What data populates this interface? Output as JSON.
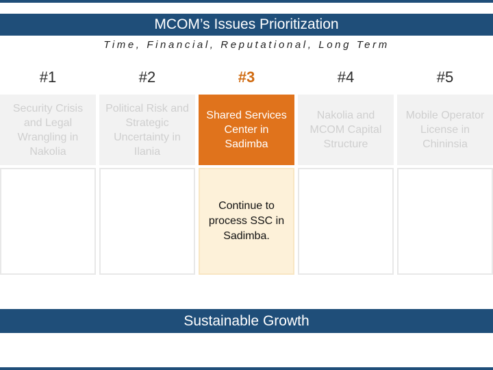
{
  "header": {
    "title": "MCOM’s Issues Prioritization",
    "subtitle": "Time, Financial, Reputational, Long Term"
  },
  "priorities": [
    {
      "rank": "#1",
      "topic": "Security Crisis and Legal Wrangling in Nakolia",
      "detail": ""
    },
    {
      "rank": "#2",
      "topic": "Political Risk and Strategic Uncertainty in Ilania",
      "detail": ""
    },
    {
      "rank": "#3",
      "topic": "Shared Services Center in Sadimba",
      "detail": "Continue to process SSC in Sadimba."
    },
    {
      "rank": "#4",
      "topic": "Nakolia and MCOM Capital Structure",
      "detail": ""
    },
    {
      "rank": "#5",
      "topic": "Mobile Operator License in Chininsia",
      "detail": ""
    }
  ],
  "footer": {
    "banner": "Sustainable Growth"
  },
  "colors": {
    "primary_blue": "#1f4e79",
    "highlight_orange": "#e0731c",
    "highlight_light": "#fdf1d9",
    "muted_box": "#f2f2f2"
  }
}
